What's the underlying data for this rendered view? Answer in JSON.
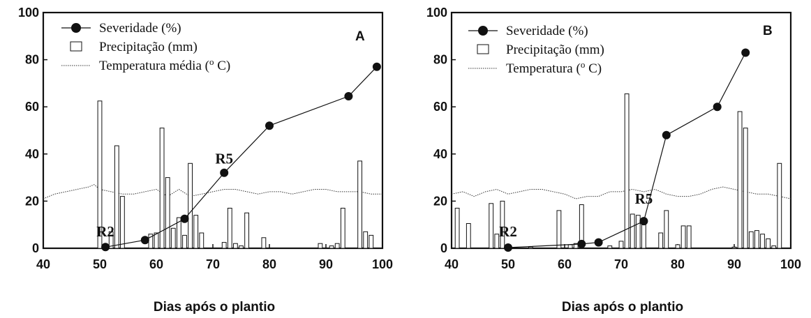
{
  "chart_data": [
    {
      "panel": "A",
      "type": "bar+line",
      "xlabel": "Dias após o plantio",
      "xlim": [
        40,
        100
      ],
      "ylim": [
        0,
        100
      ],
      "xticks": [
        40,
        50,
        60,
        70,
        80,
        90,
        100
      ],
      "yticks": [
        0,
        20,
        40,
        60,
        80,
        100
      ],
      "legend": {
        "placement": "top-left",
        "entries": [
          "Severidade (%)",
          "Precipitação (mm)",
          "Temperatura média (º C)"
        ],
        "label_parts": [
          {
            "text": "Severidade (%)",
            "sup": ""
          },
          {
            "text": "Precipitação (mm)",
            "sup": ""
          },
          {
            "text": "Temperatura média (",
            "sup": "o",
            "after": " C)"
          }
        ]
      },
      "severity": {
        "name": "Severidade (%)",
        "x": [
          51,
          58,
          65,
          72,
          80,
          94,
          99
        ],
        "y": [
          0.5,
          3.5,
          12.5,
          32,
          52,
          64.5,
          77
        ]
      },
      "precipitation": {
        "name": "Precipitação (mm)",
        "x": [
          50,
          52,
          53,
          54,
          59,
          60,
          61,
          62,
          63,
          64,
          65,
          66,
          67,
          68,
          72,
          73,
          74,
          75,
          76,
          79,
          89,
          91,
          92,
          93,
          96,
          97,
          98
        ],
        "y": [
          62.5,
          7,
          43.5,
          22,
          6,
          6.5,
          51,
          30,
          8.5,
          13,
          5.5,
          36,
          14,
          6.5,
          2.5,
          17,
          2,
          1,
          15,
          4.5,
          2,
          1,
          2,
          17,
          37,
          7,
          5.5
        ]
      },
      "temperature": {
        "name": "Temperatura média (º C)",
        "x": [
          40,
          42,
          44,
          46,
          48,
          49,
          50,
          52,
          54,
          56,
          58,
          60,
          62,
          64,
          66,
          68,
          70,
          72,
          74,
          76,
          78,
          80,
          82,
          84,
          86,
          88,
          90,
          92,
          94,
          96,
          98,
          100
        ],
        "y": [
          21,
          23,
          24,
          25,
          26,
          27,
          25,
          24,
          23,
          23,
          24,
          25,
          22,
          25,
          22,
          23,
          24,
          25,
          25,
          24,
          23,
          24,
          24,
          23,
          24,
          25,
          25,
          24,
          24,
          24,
          23,
          23
        ]
      },
      "annotations": [
        {
          "text": "R2",
          "x": 51,
          "y": 5
        },
        {
          "text": "R5",
          "x": 72,
          "y": 36
        }
      ],
      "panel_label": "A"
    },
    {
      "panel": "B",
      "type": "bar+line",
      "xlabel": "Dias após o plantio",
      "xlim": [
        40,
        100
      ],
      "ylim": [
        0,
        100
      ],
      "xticks": [
        40,
        50,
        60,
        70,
        80,
        90,
        100
      ],
      "yticks": [
        0,
        20,
        40,
        60,
        80,
        100
      ],
      "legend": {
        "placement": "top-left",
        "entries": [
          "Severidade (%)",
          "Precipitação (mm)",
          "Temperatura (º C)"
        ],
        "label_parts": [
          {
            "text": "Severidade (%)",
            "sup": ""
          },
          {
            "text": "Precipitação (mm)",
            "sup": ""
          },
          {
            "text": "Temperatura (",
            "sup": "o",
            "after": " C)"
          }
        ]
      },
      "severity": {
        "name": "Severidade (%)",
        "x": [
          50,
          63,
          66,
          74,
          78,
          87,
          92
        ],
        "y": [
          0.3,
          1.8,
          2.5,
          11.5,
          48,
          60,
          83
        ]
      },
      "precipitation": {
        "name": "Precipitação (mm)",
        "x": [
          41,
          43,
          47,
          48,
          49,
          50,
          54,
          59,
          61,
          62,
          63,
          68,
          70,
          71,
          72,
          73,
          74,
          77,
          78,
          80,
          81,
          82,
          90,
          91,
          92,
          93,
          94,
          95,
          96,
          97,
          98
        ],
        "y": [
          17,
          10.5,
          19,
          6,
          20,
          1.5,
          0.5,
          16,
          1.5,
          2,
          18.5,
          1,
          3,
          65.5,
          14.5,
          14,
          11.5,
          6.5,
          16,
          1.5,
          9.5,
          9.5,
          0.5,
          58,
          51,
          7,
          7.5,
          6,
          4,
          1,
          36
        ]
      },
      "temperature": {
        "name": "Temperatura (º C)",
        "x": [
          40,
          42,
          44,
          46,
          48,
          50,
          52,
          54,
          56,
          58,
          60,
          62,
          64,
          66,
          68,
          70,
          72,
          74,
          76,
          78,
          80,
          82,
          84,
          86,
          88,
          90,
          92,
          94,
          96,
          98,
          100
        ],
        "y": [
          23,
          24,
          22,
          24,
          25,
          23,
          24,
          25,
          25,
          24,
          23,
          21,
          22,
          22,
          24,
          24,
          25,
          24,
          25,
          23,
          22,
          22,
          23,
          25,
          26,
          25,
          24,
          23,
          23,
          22,
          21
        ]
      },
      "annotations": [
        {
          "text": "R2",
          "x": 50,
          "y": 5
        },
        {
          "text": "R5",
          "x": 74,
          "y": 19
        }
      ],
      "panel_label": "B"
    }
  ]
}
